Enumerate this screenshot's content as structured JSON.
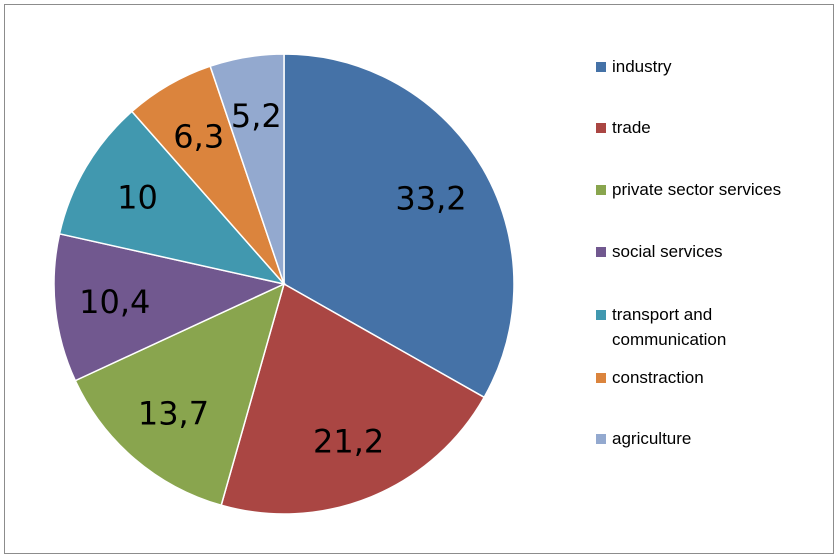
{
  "chart_data": {
    "type": "pie",
    "title": "",
    "start_angle_deg": 0,
    "direction": "clockwise",
    "legend_position": "right",
    "slices": [
      {
        "label": "industry",
        "value": 33.2,
        "display": "33,2",
        "color": "#4572A7"
      },
      {
        "label": "trade",
        "value": 21.2,
        "display": "21,2",
        "color": "#AA4643"
      },
      {
        "label": "private sector services",
        "value": 13.7,
        "display": "13,7",
        "color": "#89A54E"
      },
      {
        "label": "social services",
        "value": 10.4,
        "display": "10,4",
        "color": "#71588F"
      },
      {
        "label": "transport and communication",
        "value": 10,
        "display": "10",
        "color": "#4198AF"
      },
      {
        "label": "constraction",
        "value": 6.3,
        "display": "6,3",
        "color": "#DB843D"
      },
      {
        "label": "agriculture",
        "value": 5.2,
        "display": "5,2",
        "color": "#93A9CF"
      }
    ]
  }
}
